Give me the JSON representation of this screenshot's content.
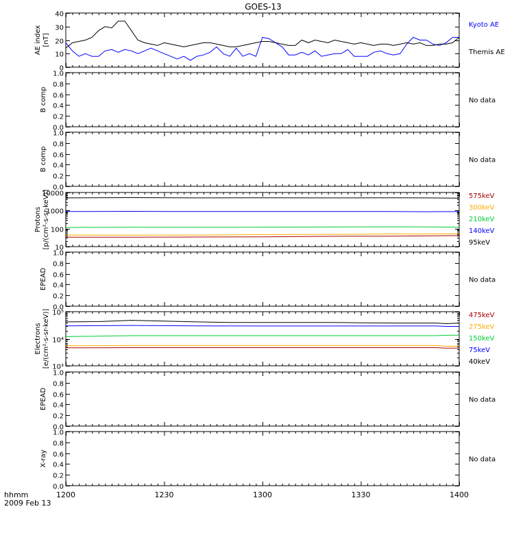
{
  "title": "GOES-13",
  "time_axis": {
    "ticks": [
      "1200",
      "1230",
      "1300",
      "1330",
      "1400"
    ],
    "unit_label": "hhmm",
    "date_label": "2009 Feb 13"
  },
  "colors": {
    "black": "#000000",
    "blue": "#0000ff",
    "green": "#00cc33",
    "orange": "#ffaa00",
    "darkred": "#aa0000"
  },
  "chart_data": [
    {
      "id": "ae",
      "type": "line",
      "ylabel": [
        "AE index",
        "[nT]"
      ],
      "ylim": [
        0,
        40
      ],
      "yticks": [
        0,
        10,
        20,
        30,
        40
      ],
      "ytick_labels": [
        "0",
        "10",
        "20",
        "30",
        "40"
      ],
      "log": false,
      "legend": [
        {
          "text": "Kyoto AE",
          "color": "#0000ff"
        },
        {
          "text": "Themis AE",
          "color": "#000000"
        }
      ],
      "series": [
        {
          "name": "Kyoto AE",
          "color": "#0000ff",
          "x": [
            0,
            2,
            4,
            6,
            8,
            10,
            12,
            14,
            16,
            18,
            20,
            22,
            24,
            26,
            28,
            30,
            32,
            34,
            36,
            38,
            40,
            42,
            44,
            46,
            48,
            50,
            52,
            54,
            56,
            58,
            60,
            62,
            64,
            66,
            68,
            70,
            72,
            74,
            76,
            78,
            80,
            82,
            84,
            86,
            88,
            90,
            92,
            94,
            96,
            98,
            100,
            102,
            104,
            106,
            108,
            110,
            112,
            114,
            116,
            118,
            120
          ],
          "y": [
            18,
            12,
            8,
            10,
            8,
            8,
            12,
            13,
            11,
            13,
            12,
            10,
            12,
            14,
            12,
            10,
            8,
            6,
            8,
            5,
            8,
            9,
            11,
            15,
            10,
            8,
            14,
            8,
            10,
            8,
            22,
            21,
            18,
            15,
            9,
            9,
            11,
            9,
            12,
            8,
            9,
            10,
            10,
            13,
            8,
            8,
            8,
            11,
            12,
            10,
            9,
            10,
            17,
            22,
            20,
            20,
            17,
            16,
            18,
            22,
            22
          ]
        },
        {
          "name": "Themis AE",
          "color": "#000000",
          "x": [
            0,
            2,
            4,
            6,
            8,
            10,
            12,
            14,
            16,
            18,
            20,
            22,
            24,
            26,
            28,
            30,
            32,
            34,
            36,
            38,
            40,
            42,
            44,
            46,
            48,
            50,
            52,
            54,
            56,
            58,
            60,
            62,
            64,
            66,
            68,
            70,
            72,
            74,
            76,
            78,
            80,
            82,
            84,
            86,
            88,
            90,
            92,
            94,
            96,
            98,
            100,
            102,
            104,
            106,
            108,
            110,
            112,
            114,
            116,
            118,
            120
          ],
          "y": [
            14,
            18,
            19,
            20,
            22,
            27,
            30,
            29,
            34,
            34,
            27,
            20,
            18,
            17,
            16,
            18,
            17,
            16,
            15,
            16,
            17,
            18,
            18,
            17,
            16,
            15,
            15,
            16,
            17,
            18,
            19,
            19,
            18,
            17,
            16,
            16,
            20,
            18,
            20,
            19,
            18,
            20,
            19,
            18,
            17,
            18,
            17,
            16,
            17,
            17,
            16,
            17,
            18,
            17,
            18,
            16,
            16,
            17,
            17,
            18,
            22
          ]
        }
      ]
    },
    {
      "id": "b1",
      "type": "line",
      "ylabel": [
        "B comp"
      ],
      "ylim": [
        0,
        1
      ],
      "yticks": [
        0,
        0.2,
        0.4,
        0.6,
        0.8,
        1.0
      ],
      "ytick_labels": [
        "0.0",
        "0.2",
        "0.4",
        "0.6",
        "0.8",
        "1.0"
      ],
      "log": false,
      "nodata": "No data",
      "series": []
    },
    {
      "id": "b2",
      "type": "line",
      "ylabel": [
        "B comp"
      ],
      "ylim": [
        0,
        1
      ],
      "yticks": [
        0,
        0.2,
        0.4,
        0.6,
        0.8,
        1.0
      ],
      "ytick_labels": [
        "0.0",
        "0.2",
        "0.4",
        "0.6",
        "0.8",
        "1.0"
      ],
      "log": false,
      "nodata": "No data",
      "series": []
    },
    {
      "id": "protons",
      "type": "line",
      "ylabel": [
        "Protons",
        "[p/(cm²-s-sr-keV)]"
      ],
      "ylim": [
        10,
        10000
      ],
      "yticks": [
        10,
        100,
        1000,
        10000
      ],
      "ytick_labels": [
        "10",
        "100",
        "1000",
        "10000"
      ],
      "log": true,
      "legend": [
        {
          "text": "575keV",
          "color": "#aa0000"
        },
        {
          "text": "300keV",
          "color": "#ffaa00"
        },
        {
          "text": "210keV",
          "color": "#00cc33"
        },
        {
          "text": "140keV",
          "color": "#0000ff"
        },
        {
          "text": "95keV",
          "color": "#000000"
        }
      ],
      "series": [
        {
          "name": "95keV",
          "color": "#000000",
          "x": [
            0,
            20,
            40,
            60,
            80,
            100,
            110,
            120
          ],
          "y": [
            5000,
            5200,
            5000,
            5100,
            5000,
            5100,
            5000,
            4900
          ]
        },
        {
          "name": "140keV",
          "color": "#0000ff",
          "x": [
            0,
            20,
            40,
            60,
            80,
            100,
            110,
            120
          ],
          "y": [
            880,
            900,
            880,
            880,
            890,
            880,
            860,
            870
          ]
        },
        {
          "name": "210keV",
          "color": "#00cc33",
          "x": [
            0,
            20,
            40,
            60,
            80,
            100,
            110,
            120
          ],
          "y": [
            115,
            120,
            118,
            120,
            122,
            125,
            123,
            120
          ]
        },
        {
          "name": "300keV",
          "color": "#ffaa00",
          "x": [
            0,
            20,
            40,
            60,
            80,
            100,
            110,
            120
          ],
          "y": [
            44,
            43,
            44,
            46,
            48,
            50,
            50,
            52
          ]
        },
        {
          "name": "575keV",
          "color": "#aa0000",
          "x": [
            0,
            20,
            40,
            60,
            80,
            100,
            110,
            120
          ],
          "y": [
            33,
            33,
            34,
            35,
            37,
            38,
            39,
            41
          ]
        }
      ]
    },
    {
      "id": "epead1",
      "type": "line",
      "ylabel": [
        "EPEAD"
      ],
      "ylim": [
        0,
        1
      ],
      "yticks": [
        0,
        0.2,
        0.4,
        0.6,
        0.8,
        1.0
      ],
      "ytick_labels": [
        "0.0",
        "0.2",
        "0.4",
        "0.6",
        "0.8",
        "1.0"
      ],
      "log": false,
      "nodata": "No data",
      "series": []
    },
    {
      "id": "electrons",
      "type": "line",
      "ylabel": [
        "Electrons",
        "[e/(cm²-s-sr-keV)]"
      ],
      "ylim": [
        1000,
        100000
      ],
      "yticks": [
        1000,
        10000,
        100000
      ],
      "ytick_labels": [
        "10³",
        "10⁴",
        "10⁵"
      ],
      "log": true,
      "legend": [
        {
          "text": "475keV",
          "color": "#aa0000"
        },
        {
          "text": "275keV",
          "color": "#ffaa00"
        },
        {
          "text": "150keV",
          "color": "#00cc33"
        },
        {
          "text": "75keV",
          "color": "#0000ff"
        },
        {
          "text": "40keV",
          "color": "#000000"
        }
      ],
      "series": [
        {
          "name": "40keV",
          "color": "#000000",
          "x": [
            0,
            10,
            20,
            30,
            40,
            50,
            60,
            70,
            80,
            90,
            100,
            113,
            116,
            120
          ],
          "y": [
            42000,
            43000,
            48000,
            45000,
            42000,
            40000,
            40000,
            40000,
            40000,
            39000,
            38000,
            38000,
            36000,
            38000
          ]
        },
        {
          "name": "75keV",
          "color": "#0000ff",
          "x": [
            0,
            20,
            40,
            60,
            80,
            100,
            113,
            116,
            120
          ],
          "y": [
            30000,
            31000,
            30000,
            29500,
            29500,
            29500,
            29500,
            28500,
            28500
          ]
        },
        {
          "name": "150keV",
          "color": "#00cc33",
          "x": [
            0,
            20,
            40,
            60,
            80,
            100,
            113,
            116,
            120
          ],
          "y": [
            12000,
            13000,
            13000,
            13000,
            13000,
            13000,
            13000,
            13500,
            13500
          ]
        },
        {
          "name": "275keV",
          "color": "#ffaa00",
          "x": [
            0,
            20,
            40,
            60,
            80,
            100,
            113,
            116,
            120
          ],
          "y": [
            5500,
            5600,
            5600,
            5600,
            5600,
            5600,
            5600,
            5300,
            5300
          ]
        },
        {
          "name": "475keV",
          "color": "#aa0000",
          "x": [
            0,
            20,
            40,
            60,
            80,
            100,
            113,
            116,
            120
          ],
          "y": [
            4600,
            4700,
            4700,
            4700,
            4700,
            4700,
            4700,
            4500,
            4500
          ]
        }
      ]
    },
    {
      "id": "epead2",
      "type": "line",
      "ylabel": [
        "EPEAD"
      ],
      "ylim": [
        0,
        1
      ],
      "yticks": [
        0,
        0.2,
        0.4,
        0.6,
        0.8,
        1.0
      ],
      "ytick_labels": [
        "0.0",
        "0.2",
        "0.4",
        "0.6",
        "0.8",
        "1.0"
      ],
      "log": false,
      "nodata": "No data",
      "series": []
    },
    {
      "id": "xray",
      "type": "line",
      "ylabel": [
        "X-ray"
      ],
      "ylim": [
        0,
        1
      ],
      "yticks": [
        0,
        0.2,
        0.4,
        0.6,
        0.8,
        1.0
      ],
      "ytick_labels": [
        "0.0",
        "0.2",
        "0.4",
        "0.6",
        "0.8",
        "1.0"
      ],
      "log": false,
      "nodata": "No data",
      "series": []
    }
  ]
}
